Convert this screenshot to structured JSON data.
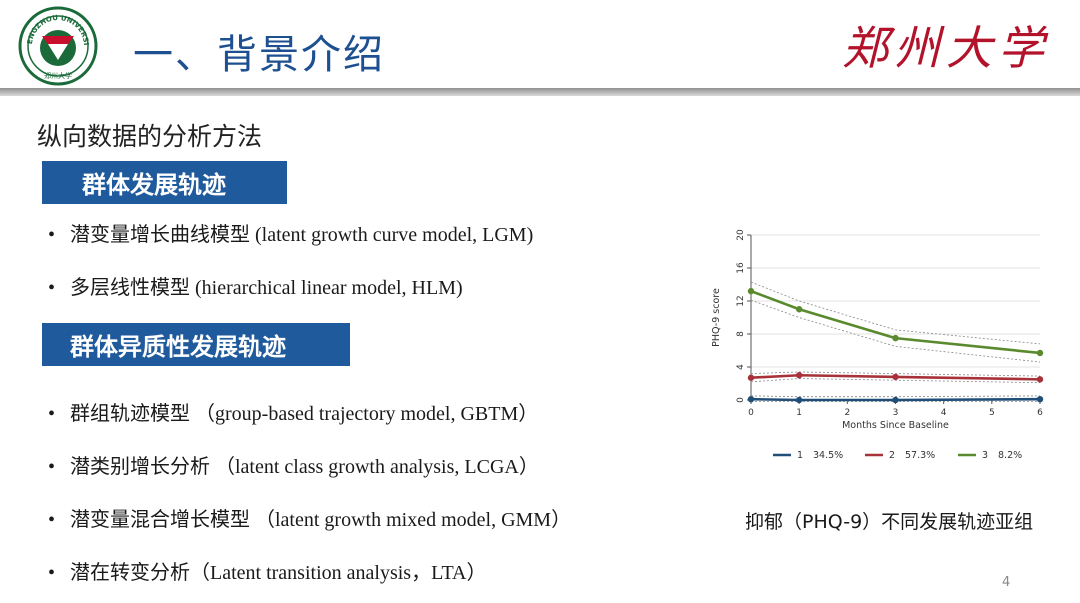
{
  "logo": {
    "arc_text": "ZHENGZHOU UNIVERSITY",
    "bottom_text": "郑州大学"
  },
  "header": {
    "title": "一、背景介绍",
    "brand": "郑州大学"
  },
  "subtitle": "纵向数据的分析方法",
  "section1": {
    "heading": "群体发展轨迹",
    "items": [
      "潜变量增长曲线模型 (latent growth curve model, LGM)",
      "多层线性模型 (hierarchical linear model, HLM)"
    ]
  },
  "section2": {
    "heading": "群体异质性发展轨迹",
    "items": [
      "群组轨迹模型 （group-based trajectory model, GBTM）",
      "潜类别增长分析 （latent class growth analysis, LCGA）",
      "潜变量混合增长模型 （latent growth mixed model, GMM）",
      "潜在转变分析（Latent transition analysis，LTA）"
    ]
  },
  "bullet_symbol": "•",
  "chart_data": {
    "type": "line",
    "xlabel": "Months Since Baseline",
    "ylabel": "PHQ-9 score",
    "x": [
      0,
      1,
      3,
      6
    ],
    "xticks": [
      0,
      1,
      2,
      3,
      4,
      5,
      6
    ],
    "yticks": [
      0,
      4,
      8,
      12,
      16,
      20
    ],
    "xlim": [
      0,
      6
    ],
    "ylim": [
      0,
      20
    ],
    "legend_position": "bottom",
    "series": [
      {
        "name": "1",
        "share": "34.5%",
        "color": "#1f4e79",
        "values": [
          0.1,
          0.0,
          0.0,
          0.1
        ],
        "ci_upper": [
          0.5,
          0.4,
          0.4,
          0.5
        ],
        "ci_lower": [
          -0.2,
          -0.2,
          -0.2,
          -0.2
        ]
      },
      {
        "name": "2",
        "share": "57.3%",
        "color": "#a8323a",
        "values": [
          2.7,
          3.0,
          2.8,
          2.5
        ],
        "ci_upper": [
          3.2,
          3.4,
          3.2,
          2.9
        ],
        "ci_lower": [
          2.2,
          2.6,
          2.4,
          2.1
        ]
      },
      {
        "name": "3",
        "share": "8.2%",
        "color": "#5a8a2e",
        "values": [
          13.2,
          11.0,
          7.5,
          5.7
        ],
        "ci_upper": [
          14.3,
          12.0,
          8.5,
          6.8
        ],
        "ci_lower": [
          12.1,
          10.0,
          6.5,
          4.6
        ]
      }
    ]
  },
  "caption": "抑郁（PHQ-9）不同发展轨迹亚组",
  "page_number": "4"
}
